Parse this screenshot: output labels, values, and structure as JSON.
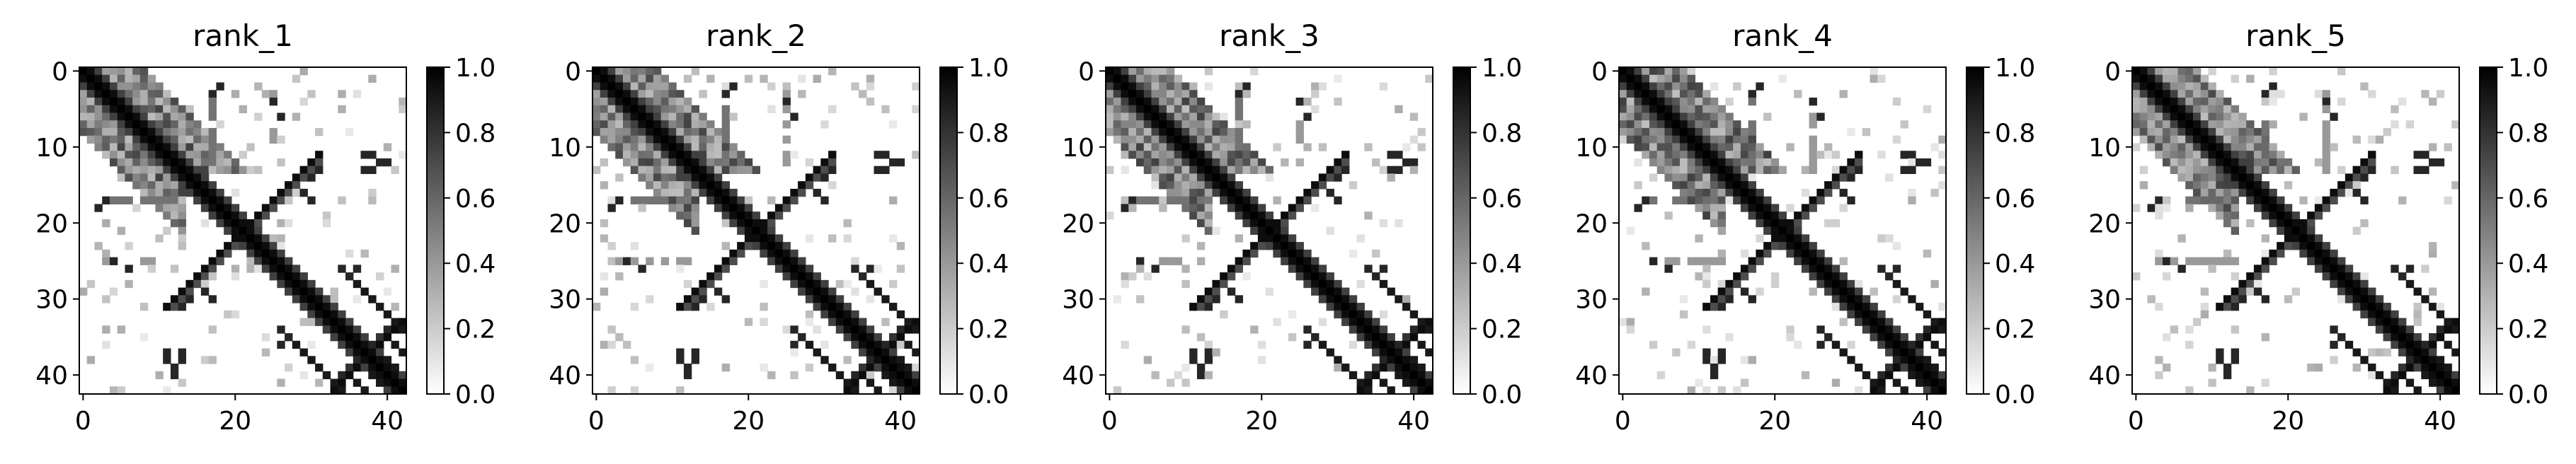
{
  "figure": {
    "panel_count": 5,
    "colormap": "Greys",
    "cmap_low": "#ffffff",
    "cmap_high": "#000000"
  },
  "chart_data": [
    {
      "type": "heatmap",
      "title": "rank_1",
      "size": 43,
      "xticks": [
        0,
        20,
        40
      ],
      "yticks": [
        0,
        10,
        20,
        30,
        40
      ],
      "colorbar": {
        "range": [
          0.0,
          1.0
        ],
        "ticks": [
          "0.0",
          "0.2",
          "0.4",
          "0.6",
          "0.8",
          "1.0"
        ]
      },
      "seed": 11
    },
    {
      "type": "heatmap",
      "title": "rank_2",
      "size": 43,
      "xticks": [
        0,
        20,
        40
      ],
      "yticks": [
        0,
        10,
        20,
        30,
        40
      ],
      "colorbar": {
        "range": [
          0.0,
          1.0
        ],
        "ticks": [
          "0.0",
          "0.2",
          "0.4",
          "0.6",
          "0.8",
          "1.0"
        ]
      },
      "seed": 23
    },
    {
      "type": "heatmap",
      "title": "rank_3",
      "size": 43,
      "xticks": [
        0,
        20,
        40
      ],
      "yticks": [
        0,
        10,
        20,
        30,
        40
      ],
      "colorbar": {
        "range": [
          0.0,
          1.0
        ],
        "ticks": [
          "0.0",
          "0.2",
          "0.4",
          "0.6",
          "0.8",
          "1.0"
        ]
      },
      "seed": 37
    },
    {
      "type": "heatmap",
      "title": "rank_4",
      "size": 43,
      "xticks": [
        0,
        20,
        40
      ],
      "yticks": [
        0,
        10,
        20,
        30,
        40
      ],
      "colorbar": {
        "range": [
          0.0,
          1.0
        ],
        "ticks": [
          "0.0",
          "0.2",
          "0.4",
          "0.6",
          "0.8",
          "1.0"
        ]
      },
      "seed": 41
    },
    {
      "type": "heatmap",
      "title": "rank_5",
      "size": 43,
      "xticks": [
        0,
        20,
        40
      ],
      "yticks": [
        0,
        10,
        20,
        30,
        40
      ],
      "colorbar": {
        "range": [
          0.0,
          1.0
        ],
        "ticks": [
          "0.0",
          "0.2",
          "0.4",
          "0.6",
          "0.8",
          "1.0"
        ]
      },
      "seed": 53
    }
  ]
}
